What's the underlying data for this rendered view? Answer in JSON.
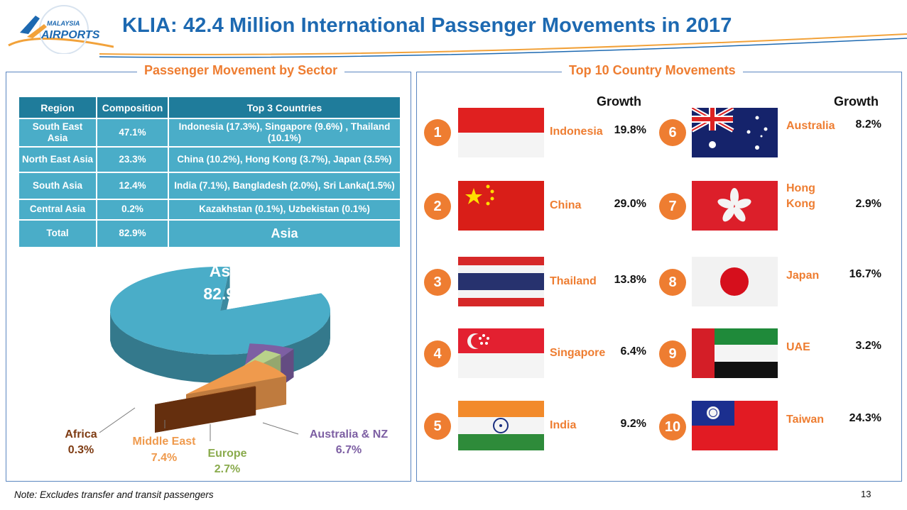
{
  "header": {
    "title": "KLIA: 42.4 Million International Passenger Movements in 2017",
    "logo_text_top": "MALAYSIA",
    "logo_text_bottom": "AIRPORTS"
  },
  "colors": {
    "title_blue": "#1d69b1",
    "accent_orange": "#ee7d31",
    "table_header": "#1f7c9b",
    "table_cell": "#4aadc8",
    "asia": "#4aadc8",
    "africa": "#7e3b12",
    "middle_east": "#ef9a4d",
    "europe": "#b9d18a",
    "australia_nz": "#7d5fa3"
  },
  "sector_panel": {
    "title": "Passenger Movement by Sector",
    "table": {
      "headers": [
        "Region",
        "Composition",
        "Top 3 Countries"
      ],
      "rows": [
        {
          "region": "South East Asia",
          "composition": "47.1%",
          "top3": "Indonesia (17.3%), Singapore (9.6%) , Thailand (10.1%)"
        },
        {
          "region": "North East Asia",
          "composition": "23.3%",
          "top3": "China (10.2%), Hong Kong (3.7%), Japan (3.5%)"
        },
        {
          "region": "South Asia",
          "composition": "12.4%",
          "top3": "India (7.1%), Bangladesh (2.0%), Sri Lanka(1.5%)"
        },
        {
          "region": "Central Asia",
          "composition": "0.2%",
          "top3": "Kazakhstan (0.1%), Uzbekistan (0.1%)"
        },
        {
          "region": "Total",
          "composition": "82.9%",
          "top3": "Asia"
        }
      ]
    }
  },
  "chart_data": {
    "type": "pie",
    "title": "",
    "slices": [
      {
        "label": "Asia",
        "value": 82.9,
        "display": "82.9%",
        "color": "#4aadc8"
      },
      {
        "label": "Africa",
        "value": 0.3,
        "display": "0.3%",
        "color": "#7e3b12"
      },
      {
        "label": "Middle East",
        "value": 7.4,
        "display": "7.4%",
        "color": "#ef9a4d"
      },
      {
        "label": "Europe",
        "value": 2.7,
        "display": "2.7%",
        "color": "#b9d18a"
      },
      {
        "label": "Australia & NZ",
        "value": 6.7,
        "display": "6.7%",
        "color": "#7d5fa3"
      }
    ],
    "exploded": true,
    "style": "3d"
  },
  "country_panel": {
    "title": "Top 10 Country Movements",
    "growth_label": "Growth",
    "countries": [
      {
        "rank": "1",
        "name": "Indonesia",
        "growth": "19.8%",
        "flag": "indonesia-flag"
      },
      {
        "rank": "2",
        "name": "China",
        "growth": "29.0%",
        "flag": "china-flag"
      },
      {
        "rank": "3",
        "name": "Thailand",
        "growth": "13.8%",
        "flag": "thailand-flag"
      },
      {
        "rank": "4",
        "name": "Singapore",
        "growth": "6.4%",
        "flag": "singapore-flag"
      },
      {
        "rank": "5",
        "name": "India",
        "growth": "9.2%",
        "flag": "india-flag"
      },
      {
        "rank": "6",
        "name": "Australia",
        "growth": "8.2%",
        "flag": "australia-flag"
      },
      {
        "rank": "7",
        "name": "Hong Kong",
        "growth": "2.9%",
        "flag": "hong-kong-flag"
      },
      {
        "rank": "8",
        "name": "Japan",
        "growth": "16.7%",
        "flag": "japan-flag"
      },
      {
        "rank": "9",
        "name": "UAE",
        "growth": "3.2%",
        "flag": "uae-flag"
      },
      {
        "rank": "10",
        "name": "Taiwan",
        "growth": "24.3%",
        "flag": "taiwan-flag"
      }
    ]
  },
  "footer": {
    "note": "Note: Excludes transfer and transit passengers",
    "page_number": "13"
  }
}
